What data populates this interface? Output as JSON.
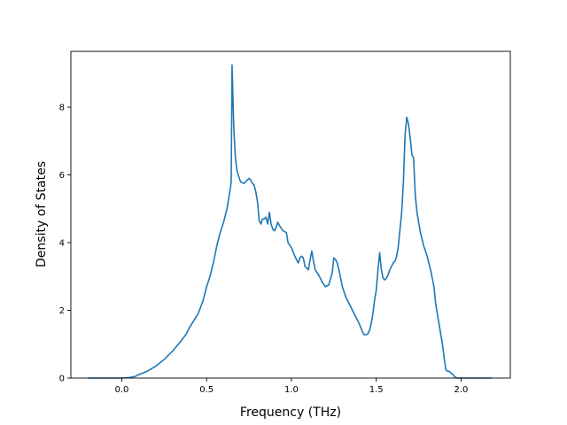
{
  "chart_data": {
    "type": "line",
    "title": "",
    "xlabel": "Frequency (THz)",
    "ylabel": "Density of States",
    "xlim": [
      -0.3,
      2.29
    ],
    "ylim": [
      0,
      9.65
    ],
    "xticks": [
      0.0,
      0.5,
      1.0,
      1.5,
      2.0
    ],
    "xtick_labels": [
      "0.0",
      "0.5",
      "1.0",
      "1.5",
      "2.0"
    ],
    "yticks": [
      0,
      2,
      4,
      6,
      8
    ],
    "ytick_labels": [
      "0",
      "2",
      "4",
      "6",
      "8"
    ],
    "grid": false,
    "line_color": "#1f77b4",
    "series": [
      {
        "x": [
          -0.2,
          -0.1,
          0.0,
          0.05,
          0.08,
          0.1,
          0.15,
          0.2,
          0.25,
          0.3,
          0.35,
          0.38,
          0.4,
          0.45,
          0.48,
          0.5,
          0.52,
          0.54,
          0.56,
          0.58,
          0.6,
          0.61,
          0.62,
          0.63,
          0.64,
          0.645,
          0.65,
          0.66,
          0.67,
          0.68,
          0.7,
          0.72,
          0.74,
          0.75,
          0.76,
          0.77,
          0.78,
          0.79,
          0.8,
          0.81,
          0.82,
          0.83,
          0.84,
          0.85,
          0.86,
          0.87,
          0.88,
          0.89,
          0.9,
          0.91,
          0.92,
          0.93,
          0.95,
          0.97,
          0.98,
          1.0,
          1.02,
          1.04,
          1.05,
          1.06,
          1.07,
          1.08,
          1.1,
          1.11,
          1.12,
          1.13,
          1.14,
          1.16,
          1.18,
          1.2,
          1.22,
          1.24,
          1.25,
          1.26,
          1.27,
          1.28,
          1.3,
          1.32,
          1.34,
          1.37,
          1.4,
          1.42,
          1.43,
          1.44,
          1.45,
          1.46,
          1.47,
          1.48,
          1.49,
          1.5,
          1.51,
          1.52,
          1.53,
          1.54,
          1.55,
          1.56,
          1.57,
          1.58,
          1.59,
          1.6,
          1.61,
          1.62,
          1.63,
          1.64,
          1.65,
          1.66,
          1.67,
          1.68,
          1.69,
          1.7,
          1.71,
          1.72,
          1.73,
          1.74,
          1.75,
          1.76,
          1.77,
          1.78,
          1.8,
          1.82,
          1.84,
          1.85,
          1.86,
          1.87,
          1.88,
          1.89,
          1.9,
          1.91,
          1.92,
          1.93,
          1.94,
          1.95,
          1.96,
          1.97,
          1.98,
          2.0,
          2.1,
          2.18
        ],
        "y": [
          0,
          0,
          0,
          0.02,
          0.05,
          0.1,
          0.2,
          0.35,
          0.55,
          0.8,
          1.1,
          1.3,
          1.5,
          1.9,
          2.3,
          2.7,
          3.0,
          3.4,
          3.9,
          4.3,
          4.6,
          4.8,
          5.0,
          5.3,
          5.6,
          5.8,
          9.25,
          7.4,
          6.5,
          6.1,
          5.8,
          5.75,
          5.85,
          5.9,
          5.85,
          5.75,
          5.7,
          5.5,
          5.2,
          4.65,
          4.55,
          4.7,
          4.7,
          4.75,
          4.55,
          4.9,
          4.55,
          4.4,
          4.35,
          4.45,
          4.6,
          4.5,
          4.35,
          4.3,
          4.0,
          3.85,
          3.6,
          3.4,
          3.55,
          3.6,
          3.55,
          3.3,
          3.2,
          3.5,
          3.75,
          3.45,
          3.2,
          3.05,
          2.85,
          2.7,
          2.75,
          3.1,
          3.55,
          3.5,
          3.4,
          3.2,
          2.7,
          2.4,
          2.2,
          1.9,
          1.6,
          1.35,
          1.28,
          1.28,
          1.3,
          1.4,
          1.6,
          1.9,
          2.3,
          2.6,
          3.2,
          3.7,
          3.2,
          2.95,
          2.9,
          2.95,
          3.05,
          3.2,
          3.3,
          3.4,
          3.45,
          3.6,
          3.9,
          4.4,
          4.9,
          5.8,
          7.2,
          7.7,
          7.5,
          7.1,
          6.6,
          6.5,
          5.4,
          4.9,
          4.6,
          4.3,
          4.1,
          3.9,
          3.6,
          3.2,
          2.7,
          2.2,
          1.9,
          1.6,
          1.3,
          1.0,
          0.6,
          0.25,
          0.2,
          0.2,
          0.15,
          0.12,
          0.05,
          0.01,
          0,
          0,
          0,
          0
        ]
      }
    ]
  }
}
